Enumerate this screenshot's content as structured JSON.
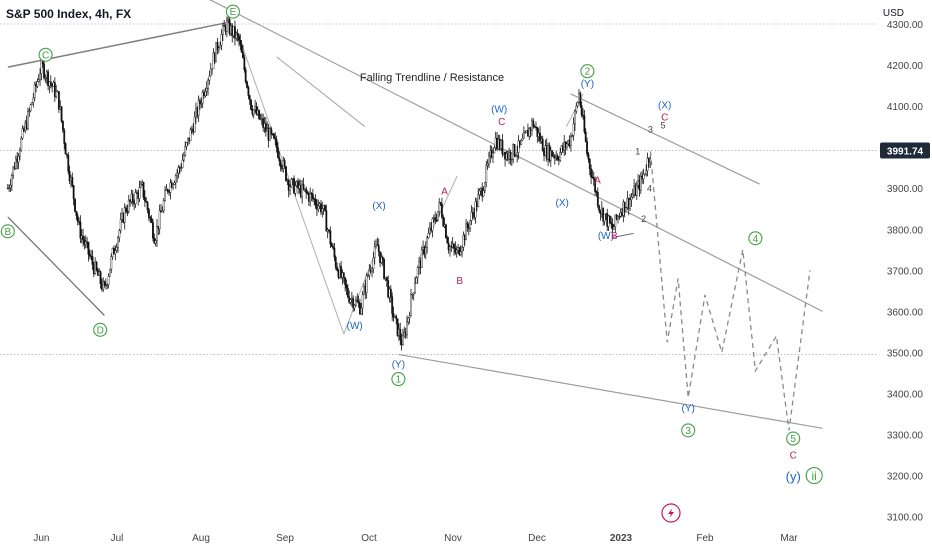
{
  "header": {
    "title": "S&P 500 Index, 4h, FX"
  },
  "chart_data": {
    "type": "candlestick",
    "currency": "USD",
    "y_range": [
      3080,
      4330
    ],
    "y_ticks": [
      "4300.00",
      "4200.00",
      "4100.00",
      "4000.00",
      "3900.00",
      "3800.00",
      "3700.00",
      "3600.00",
      "3500.00",
      "3400.00",
      "3300.00",
      "3200.00",
      "3100.00"
    ],
    "y_tick_values": [
      4300,
      4200,
      4100,
      4000,
      3900,
      3800,
      3700,
      3600,
      3500,
      3400,
      3300,
      3200,
      3100
    ],
    "x_ticks": [
      {
        "label": "Jun",
        "month": 0.1
      },
      {
        "label": "Jul",
        "month": 1.0
      },
      {
        "label": "Aug",
        "month": 2.0
      },
      {
        "label": "Sep",
        "month": 3.0
      },
      {
        "label": "Oct",
        "month": 4.0
      },
      {
        "label": "Nov",
        "month": 5.0
      },
      {
        "label": "Dec",
        "month": 6.0
      },
      {
        "label": "2023",
        "month": 7.0
      },
      {
        "label": "Feb",
        "month": 8.0
      },
      {
        "label": "Mar",
        "month": 9.0
      }
    ],
    "last_price": {
      "label": "3991.74",
      "value": 3991.74
    },
    "horizontal_lines": [
      4300,
      3991.74,
      3495
    ],
    "price_path": [
      {
        "m": -0.3,
        "p": 3900
      },
      {
        "m": -0.05,
        "p": 4080
      },
      {
        "m": 0.1,
        "p": 4200
      },
      {
        "m": 0.3,
        "p": 4120
      },
      {
        "m": 0.4,
        "p": 3980
      },
      {
        "m": 0.55,
        "p": 3800
      },
      {
        "m": 0.7,
        "p": 3720
      },
      {
        "m": 0.85,
        "p": 3650
      },
      {
        "m": 0.95,
        "p": 3740
      },
      {
        "m": 1.1,
        "p": 3850
      },
      {
        "m": 1.3,
        "p": 3900
      },
      {
        "m": 1.45,
        "p": 3780
      },
      {
        "m": 1.6,
        "p": 3900
      },
      {
        "m": 1.75,
        "p": 3950
      },
      {
        "m": 1.9,
        "p": 4050
      },
      {
        "m": 2.05,
        "p": 4150
      },
      {
        "m": 2.2,
        "p": 4250
      },
      {
        "m": 2.3,
        "p": 4300
      },
      {
        "m": 2.45,
        "p": 4260
      },
      {
        "m": 2.6,
        "p": 4100
      },
      {
        "m": 2.75,
        "p": 4050
      },
      {
        "m": 2.9,
        "p": 4000
      },
      {
        "m": 3.05,
        "p": 3910
      },
      {
        "m": 3.15,
        "p": 3900
      },
      {
        "m": 3.3,
        "p": 3880
      },
      {
        "m": 3.45,
        "p": 3850
      },
      {
        "m": 3.6,
        "p": 3720
      },
      {
        "m": 3.75,
        "p": 3640
      },
      {
        "m": 3.9,
        "p": 3610
      },
      {
        "m": 4.0,
        "p": 3700
      },
      {
        "m": 4.1,
        "p": 3760
      },
      {
        "m": 4.2,
        "p": 3680
      },
      {
        "m": 4.3,
        "p": 3580
      },
      {
        "m": 4.4,
        "p": 3520
      },
      {
        "m": 4.45,
        "p": 3570
      },
      {
        "m": 4.55,
        "p": 3680
      },
      {
        "m": 4.7,
        "p": 3780
      },
      {
        "m": 4.85,
        "p": 3860
      },
      {
        "m": 4.95,
        "p": 3760
      },
      {
        "m": 5.05,
        "p": 3740
      },
      {
        "m": 5.2,
        "p": 3820
      },
      {
        "m": 5.35,
        "p": 3900
      },
      {
        "m": 5.5,
        "p": 4020
      },
      {
        "m": 5.65,
        "p": 3980
      },
      {
        "m": 5.8,
        "p": 4000
      },
      {
        "m": 5.95,
        "p": 4060
      },
      {
        "m": 6.1,
        "p": 3990
      },
      {
        "m": 6.25,
        "p": 3980
      },
      {
        "m": 6.4,
        "p": 4020
      },
      {
        "m": 6.5,
        "p": 4130
      },
      {
        "m": 6.6,
        "p": 3980
      },
      {
        "m": 6.75,
        "p": 3850
      },
      {
        "m": 6.9,
        "p": 3800
      },
      {
        "m": 7.0,
        "p": 3850
      },
      {
        "m": 7.1,
        "p": 3870
      },
      {
        "m": 7.25,
        "p": 3920
      },
      {
        "m": 7.35,
        "p": 3990
      }
    ],
    "projection_path": [
      {
        "m": 7.35,
        "p": 3990
      },
      {
        "m": 7.55,
        "p": 3525
      },
      {
        "m": 7.68,
        "p": 3680
      },
      {
        "m": 7.8,
        "p": 3390
      },
      {
        "m": 8.0,
        "p": 3640
      },
      {
        "m": 8.2,
        "p": 3500
      },
      {
        "m": 8.45,
        "p": 3750
      },
      {
        "m": 8.6,
        "p": 3455
      },
      {
        "m": 8.85,
        "p": 3540
      },
      {
        "m": 9.0,
        "p": 3310
      },
      {
        "m": 9.25,
        "p": 3700
      }
    ],
    "trendlines": [
      {
        "m1": -0.3,
        "p1": 4195,
        "m2": 2.35,
        "p2": 4305,
        "color": "#7f7f7f",
        "w": 1.5
      },
      {
        "m1": 2.05,
        "p1": 4365,
        "m2": 9.4,
        "p2": 3600,
        "color": "#9e9e9e",
        "w": 1.2
      },
      {
        "m1": 4.35,
        "p1": 3495,
        "m2": 9.4,
        "p2": 3315,
        "color": "#9e9e9e",
        "w": 1.2
      },
      {
        "m1": -0.3,
        "p1": 3830,
        "m2": 0.85,
        "p2": 3590,
        "color": "#6d6d6d",
        "w": 1.2
      },
      {
        "m1": 2.9,
        "p1": 4220,
        "m2": 3.95,
        "p2": 4050,
        "color": "#b0b0b0",
        "w": 1.2
      },
      {
        "m1": 6.4,
        "p1": 4130,
        "m2": 8.65,
        "p2": 3910,
        "color": "#9e9e9e",
        "w": 1.2
      },
      {
        "m1": 2.45,
        "p1": 4270,
        "m2": 3.7,
        "p2": 3545,
        "color": "#b0b0b0",
        "w": 1.0
      },
      {
        "m1": 3.7,
        "p1": 3545,
        "m2": 4.05,
        "p2": 3730,
        "color": "#b0b0b0",
        "w": 1.0
      },
      {
        "m1": 4.6,
        "p1": 3730,
        "m2": 5.05,
        "p2": 3930,
        "color": "#b0b0b0",
        "w": 1.0
      },
      {
        "m1": 6.35,
        "p1": 4050,
        "m2": 6.55,
        "p2": 4130,
        "color": "#b0b0b0",
        "w": 1.0
      },
      {
        "m1": 6.9,
        "p1": 3780,
        "m2": 7.15,
        "p2": 3790,
        "color": "#6d6d6d",
        "w": 1.0
      }
    ],
    "annotations": [
      {
        "text": "Falling Trendline / Resistance",
        "m": 4.75,
        "p": 4170,
        "color": "#222222",
        "size": 11,
        "circle": false
      },
      {
        "text": "C",
        "m": 0.15,
        "p": 4225,
        "color": "#43a047",
        "size": 10,
        "circle": true
      },
      {
        "text": "E",
        "m": 2.38,
        "p": 4330,
        "color": "#43a047",
        "size": 10,
        "circle": true
      },
      {
        "text": "B",
        "m": -0.3,
        "p": 3795,
        "color": "#43a047",
        "size": 10,
        "circle": true
      },
      {
        "text": "D",
        "m": 0.8,
        "p": 3555,
        "color": "#43a047",
        "size": 10,
        "circle": true
      },
      {
        "text": "1",
        "m": 4.35,
        "p": 3435,
        "color": "#43a047",
        "size": 10,
        "circle": true
      },
      {
        "text": "2",
        "m": 6.6,
        "p": 4185,
        "color": "#43a047",
        "size": 10,
        "circle": true
      },
      {
        "text": "3",
        "m": 7.8,
        "p": 3310,
        "color": "#43a047",
        "size": 10,
        "circle": true
      },
      {
        "text": "4",
        "m": 8.6,
        "p": 3778,
        "color": "#43a047",
        "size": 10,
        "circle": true
      },
      {
        "text": "5",
        "m": 9.05,
        "p": 3290,
        "color": "#43a047",
        "size": 10,
        "circle": true
      },
      {
        "text": "ii",
        "m": 9.3,
        "p": 3200,
        "color": "#43a047",
        "size": 12,
        "circle": true
      },
      {
        "text": "(y)",
        "m": 9.05,
        "p": 3198,
        "color": "#1e63c8",
        "size": 13,
        "circle": false
      },
      {
        "text": "C",
        "m": 9.05,
        "p": 3250,
        "color": "#c2185b",
        "size": 10,
        "circle": false
      },
      {
        "text": "(X)",
        "m": 4.12,
        "p": 3858,
        "color": "#1e63c8",
        "size": 10,
        "circle": false
      },
      {
        "text": "(W)",
        "m": 3.83,
        "p": 3565,
        "color": "#1e63c8",
        "size": 10,
        "circle": false
      },
      {
        "text": "(Y)",
        "m": 4.35,
        "p": 3472,
        "color": "#1e63c8",
        "size": 10,
        "circle": false
      },
      {
        "text": "A",
        "m": 4.9,
        "p": 3893,
        "color": "#c2185b",
        "size": 10,
        "circle": false
      },
      {
        "text": "B",
        "m": 5.08,
        "p": 3675,
        "color": "#c2185b",
        "size": 10,
        "circle": false
      },
      {
        "text": "(W)",
        "m": 5.55,
        "p": 4093,
        "color": "#1e63c8",
        "size": 10,
        "circle": false
      },
      {
        "text": "C",
        "m": 5.58,
        "p": 4063,
        "color": "#c2185b",
        "size": 10,
        "circle": false
      },
      {
        "text": "(Y)",
        "m": 6.6,
        "p": 4155,
        "color": "#1e63c8",
        "size": 10,
        "circle": false
      },
      {
        "text": "(X)",
        "m": 6.3,
        "p": 3865,
        "color": "#1e63c8",
        "size": 10,
        "circle": false
      },
      {
        "text": "A",
        "m": 6.72,
        "p": 3920,
        "color": "#c2185b",
        "size": 10,
        "circle": false
      },
      {
        "text": "(W)",
        "m": 6.82,
        "p": 3785,
        "color": "#1e63c8",
        "size": 10,
        "circle": false
      },
      {
        "text": "B",
        "m": 6.92,
        "p": 3785,
        "color": "#c2185b",
        "size": 10,
        "circle": false
      },
      {
        "text": "(X)",
        "m": 7.52,
        "p": 4103,
        "color": "#1e63c8",
        "size": 10,
        "circle": false
      },
      {
        "text": "C",
        "m": 7.52,
        "p": 4073,
        "color": "#c2185b",
        "size": 10,
        "circle": false
      },
      {
        "text": "3",
        "m": 7.35,
        "p": 4043,
        "color": "#444444",
        "size": 9,
        "circle": false
      },
      {
        "text": "5",
        "m": 7.5,
        "p": 4053,
        "color": "#444444",
        "size": 9,
        "circle": false
      },
      {
        "text": "1",
        "m": 7.2,
        "p": 3990,
        "color": "#444444",
        "size": 9,
        "circle": false
      },
      {
        "text": "4",
        "m": 7.34,
        "p": 3900,
        "color": "#444444",
        "size": 9,
        "circle": false
      },
      {
        "text": "2",
        "m": 7.27,
        "p": 3825,
        "color": "#444444",
        "size": 9,
        "circle": false
      },
      {
        "text": "(Y)",
        "m": 7.8,
        "p": 3365,
        "color": "#1e63c8",
        "size": 10,
        "circle": false
      }
    ]
  }
}
